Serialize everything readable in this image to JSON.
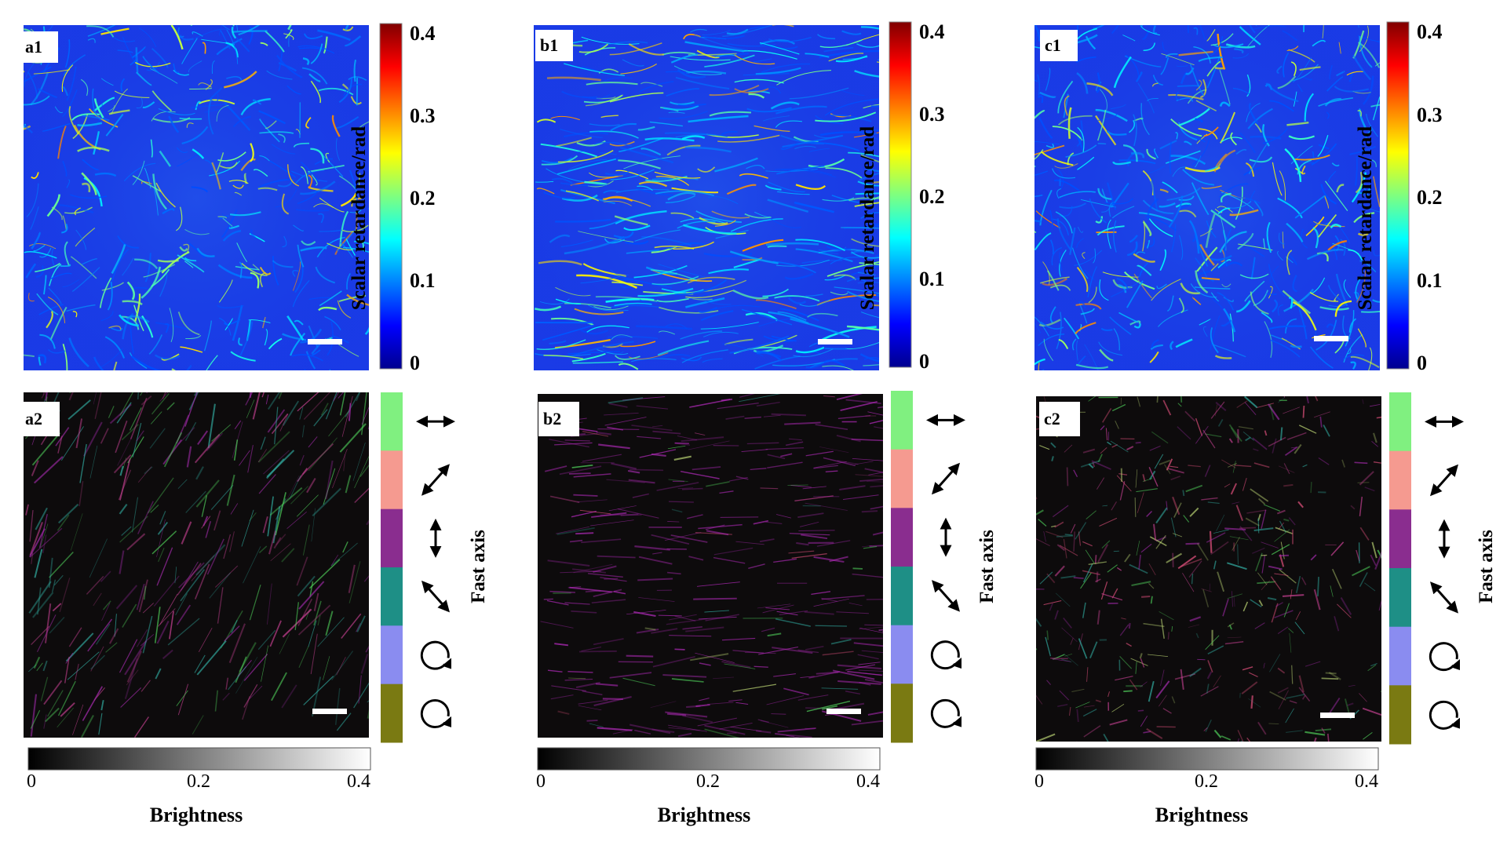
{
  "retardance_colorbar": {
    "label": "Scalar retardance/rad",
    "ticks": [
      "0",
      "0.1",
      "0.2",
      "0.3",
      "0.4"
    ],
    "tick_values": [
      0,
      0.1,
      0.2,
      0.3,
      0.4
    ],
    "range": [
      0,
      0.4
    ],
    "colormap": "jet"
  },
  "brightness_colorbar": {
    "label": "Brightness",
    "ticks": [
      "0",
      "0.2",
      "0.4"
    ],
    "tick_values": [
      0,
      0.2,
      0.4
    ],
    "range": [
      0,
      0.4
    ],
    "colormap": "gray"
  },
  "fast_axis_colorbar": {
    "label": "Fast axis",
    "segments": [
      {
        "color": "#80f080",
        "symbol": "horizontal-double-arrow-icon"
      },
      {
        "color": "#f59a90",
        "symbol": "diagonal-45-double-arrow-icon"
      },
      {
        "color": "#8a2d8f",
        "symbol": "vertical-double-arrow-icon"
      },
      {
        "color": "#1e8f86",
        "symbol": "diagonal-135-double-arrow-icon"
      },
      {
        "color": "#8a8cf0",
        "symbol": "circular-arrow-icon"
      },
      {
        "color": "#7a7a12",
        "symbol": "circular-arrow-icon"
      }
    ]
  },
  "panels": [
    {
      "id": "a",
      "retardance_label": "a1",
      "orientation_label": "a2"
    },
    {
      "id": "b",
      "retardance_label": "b1",
      "orientation_label": "b2"
    },
    {
      "id": "c",
      "retardance_label": "c1",
      "orientation_label": "c2"
    }
  ],
  "colors": {
    "retardance_background": "#1a3be6",
    "orientation_background": "#0d0b0c"
  }
}
